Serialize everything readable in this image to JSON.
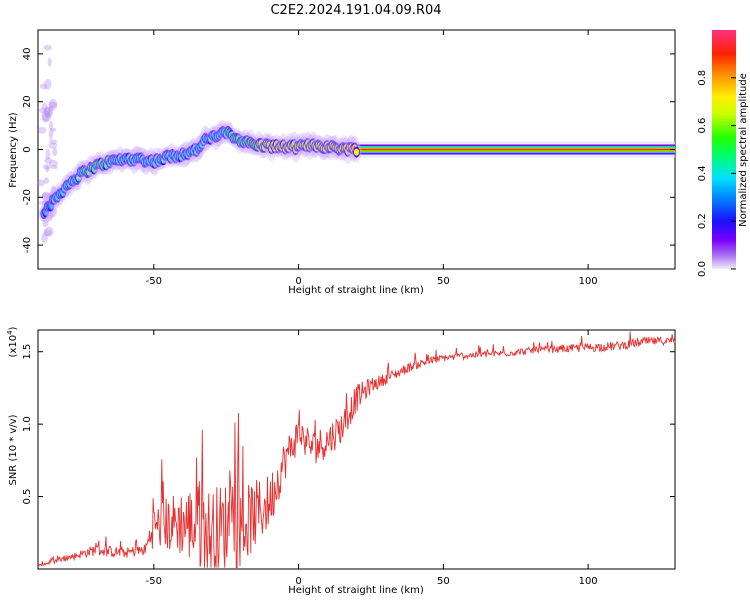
{
  "chart_data": {
    "title": "C2E2.2024.191.04.09.R04",
    "panels": [
      {
        "type": "heatmap",
        "xlabel": "Height of straight line (km)",
        "ylabel": "Frequency (Hz)",
        "xlim": [
          -90,
          130
        ],
        "ylim": [
          -50,
          50
        ],
        "xticks": [
          -50,
          0,
          50,
          100
        ],
        "yticks": [
          -40,
          -20,
          0,
          20,
          40
        ],
        "ridge": {
          "x": [
            -88,
            -85,
            -80,
            -75,
            -70,
            -65,
            -60,
            -55,
            -50,
            -45,
            -40,
            -35,
            -32,
            -28,
            -25,
            -22,
            -18,
            -15,
            -10,
            -5,
            0,
            5,
            10,
            15,
            20,
            50,
            100,
            130
          ],
          "y": [
            -26,
            -22,
            -15,
            -10,
            -7,
            -5,
            -4,
            -4,
            -5,
            -3,
            -2,
            0,
            4,
            6,
            7,
            5,
            3,
            2,
            1.5,
            1,
            1,
            2,
            1,
            0.5,
            0,
            0,
            0,
            0
          ],
          "strength": [
            0.3,
            0.4,
            0.5,
            0.5,
            0.55,
            0.5,
            0.5,
            0.45,
            0.45,
            0.5,
            0.5,
            0.45,
            0.45,
            0.5,
            0.5,
            0.55,
            0.6,
            0.7,
            0.85,
            0.85,
            0.8,
            0.75,
            0.8,
            0.85,
            0.95,
            0.95,
            0.95,
            0.95
          ]
        },
        "colorbar": {
          "label": "Normalized spectral amplitude",
          "ticks": [
            "0.0",
            "0.2",
            "0.4",
            "0.6",
            "0.8"
          ],
          "tick_values": [
            0.0,
            0.2,
            0.4,
            0.6,
            0.8
          ],
          "range": [
            0,
            1
          ],
          "colormap": "rainbow"
        }
      },
      {
        "type": "line",
        "xlabel": "Height of straight line (km)",
        "ylabel": "SNR (10 * v/v)",
        "scale_label": "(x10",
        "scale_exp": "4",
        "scale_suffix": ")",
        "xlim": [
          -90,
          130
        ],
        "ylim": [
          0,
          16500
        ],
        "xticks": [
          -50,
          0,
          50,
          100
        ],
        "yticks": [
          5000,
          10000,
          15000
        ],
        "ytick_labels": [
          "0.5",
          "1.0",
          "1.5"
        ],
        "color": "#e83030",
        "envelope": {
          "x": [
            -90,
            -80,
            -70,
            -60,
            -53,
            -50,
            -45,
            -40,
            -35,
            -30,
            -25,
            -20,
            -15,
            -10,
            -5,
            0,
            5,
            10,
            15,
            20,
            25,
            30,
            40,
            50,
            60,
            70,
            80,
            90,
            100,
            110,
            120,
            130
          ],
          "base": [
            200,
            700,
            1200,
            1000,
            1200,
            2500,
            2500,
            2500,
            2000,
            1500,
            2000,
            2000,
            3000,
            4000,
            7000,
            9000,
            8000,
            8500,
            9500,
            11500,
            12500,
            13000,
            14000,
            14500,
            14700,
            14800,
            15000,
            15100,
            15200,
            15300,
            15600,
            15700
          ],
          "noise": [
            100,
            250,
            500,
            450,
            500,
            1800,
            2500,
            3000,
            3800,
            4000,
            4000,
            3500,
            3000,
            2500,
            1800,
            1500,
            1500,
            1500,
            1400,
            1200,
            700,
            500,
            400,
            300,
            300,
            300,
            300,
            300,
            400,
            400,
            400,
            300
          ]
        }
      }
    ]
  }
}
